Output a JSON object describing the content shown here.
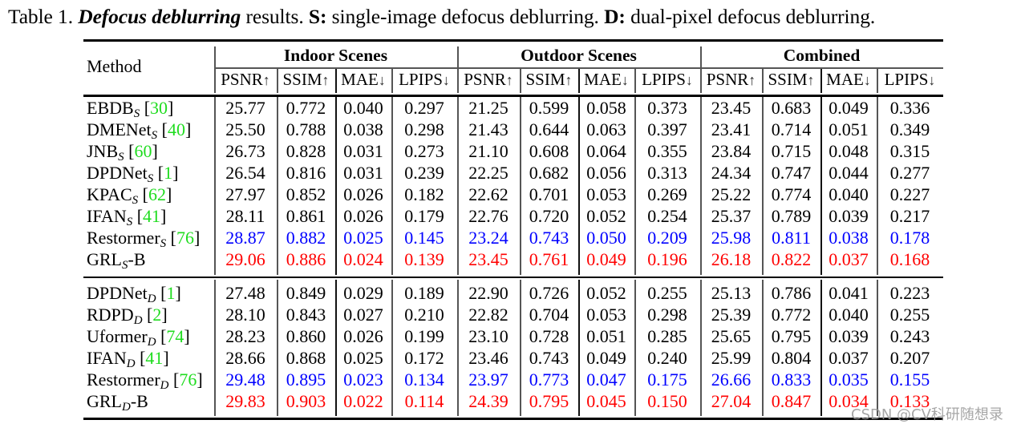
{
  "caption": {
    "prefix": "Table 1. ",
    "title_italic": "Defocus deblurring",
    "after_title": " results. ",
    "s_label": "S:",
    "s_desc": " single-image defocus deblurring. ",
    "d_label": "D:",
    "d_desc": " dual-pixel defocus deblurring."
  },
  "header": {
    "method": "Method",
    "groups": [
      "Indoor Scenes",
      "Outdoor Scenes",
      "Combined"
    ],
    "metrics": [
      "PSNR↑",
      "SSIM↑",
      "MAE↓",
      "LPIPS↓"
    ]
  },
  "colors": {
    "best": "#ff0000",
    "second": "#0000ff",
    "citation": "#1fdc1f"
  },
  "sections": [
    {
      "rows": [
        {
          "name": "EBDB",
          "sub": "S",
          "cite": "30",
          "style": "",
          "values": [
            "25.77",
            "0.772",
            "0.040",
            "0.297",
            "21.25",
            "0.599",
            "0.058",
            "0.373",
            "23.45",
            "0.683",
            "0.049",
            "0.336"
          ]
        },
        {
          "name": "DMENet",
          "sub": "S",
          "cite": "40",
          "style": "",
          "values": [
            "25.50",
            "0.788",
            "0.038",
            "0.298",
            "21.43",
            "0.644",
            "0.063",
            "0.397",
            "23.41",
            "0.714",
            "0.051",
            "0.349"
          ]
        },
        {
          "name": "JNB",
          "sub": "S",
          "cite": "60",
          "style": "",
          "values": [
            "26.73",
            "0.828",
            "0.031",
            "0.273",
            "21.10",
            "0.608",
            "0.064",
            "0.355",
            "23.84",
            "0.715",
            "0.048",
            "0.315"
          ]
        },
        {
          "name": "DPDNet",
          "sub": "S",
          "cite": "1",
          "style": "",
          "values": [
            "26.54",
            "0.816",
            "0.031",
            "0.239",
            "22.25",
            "0.682",
            "0.056",
            "0.313",
            "24.34",
            "0.747",
            "0.044",
            "0.277"
          ]
        },
        {
          "name": "KPAC",
          "sub": "S",
          "cite": "62",
          "style": "",
          "values": [
            "27.97",
            "0.852",
            "0.026",
            "0.182",
            "22.62",
            "0.701",
            "0.053",
            "0.269",
            "25.22",
            "0.774",
            "0.040",
            "0.227"
          ]
        },
        {
          "name": "IFAN",
          "sub": "S",
          "cite": "41",
          "style": "",
          "values": [
            "28.11",
            "0.861",
            "0.026",
            "0.179",
            "22.76",
            "0.720",
            "0.052",
            "0.254",
            "25.37",
            "0.789",
            "0.039",
            "0.217"
          ]
        },
        {
          "name": "Restormer",
          "sub": "S",
          "cite": "76",
          "style": "blue",
          "values": [
            "28.87",
            "0.882",
            "0.025",
            "0.145",
            "23.24",
            "0.743",
            "0.050",
            "0.209",
            "25.98",
            "0.811",
            "0.038",
            "0.178"
          ]
        },
        {
          "name": "GRL",
          "sub": "S",
          "suffix": "-B",
          "cite": "",
          "style": "red",
          "values": [
            "29.06",
            "0.886",
            "0.024",
            "0.139",
            "23.45",
            "0.761",
            "0.049",
            "0.196",
            "26.18",
            "0.822",
            "0.037",
            "0.168"
          ]
        }
      ]
    },
    {
      "rows": [
        {
          "name": "DPDNet",
          "sub": "D",
          "cite": "1",
          "style": "",
          "values": [
            "27.48",
            "0.849",
            "0.029",
            "0.189",
            "22.90",
            "0.726",
            "0.052",
            "0.255",
            "25.13",
            "0.786",
            "0.041",
            "0.223"
          ]
        },
        {
          "name": "RDPD",
          "sub": "D",
          "cite": "2",
          "style": "",
          "values": [
            "28.10",
            "0.843",
            "0.027",
            "0.210",
            "22.82",
            "0.704",
            "0.053",
            "0.298",
            "25.39",
            "0.772",
            "0.040",
            "0.255"
          ]
        },
        {
          "name": "Uformer",
          "sub": "D",
          "cite": "74",
          "style": "",
          "values": [
            "28.23",
            "0.860",
            "0.026",
            "0.199",
            "23.10",
            "0.728",
            "0.051",
            "0.285",
            "25.65",
            "0.795",
            "0.039",
            "0.243"
          ]
        },
        {
          "name": "IFAN",
          "sub": "D",
          "cite": "41",
          "style": "",
          "values": [
            "28.66",
            "0.868",
            "0.025",
            "0.172",
            "23.46",
            "0.743",
            "0.049",
            "0.240",
            "25.99",
            "0.804",
            "0.037",
            "0.207"
          ]
        },
        {
          "name": "Restormer",
          "sub": "D",
          "cite": "76",
          "style": "blue",
          "values": [
            "29.48",
            "0.895",
            "0.023",
            "0.134",
            "23.97",
            "0.773",
            "0.047",
            "0.175",
            "26.66",
            "0.833",
            "0.035",
            "0.155"
          ]
        },
        {
          "name": "GRL",
          "sub": "D",
          "suffix": "-B",
          "cite": "",
          "style": "red",
          "values": [
            "29.83",
            "0.903",
            "0.022",
            "0.114",
            "24.39",
            "0.795",
            "0.045",
            "0.150",
            "27.04",
            "0.847",
            "0.034",
            "0.133"
          ]
        }
      ]
    }
  ],
  "watermark": "CSDN @CV科研随想录"
}
